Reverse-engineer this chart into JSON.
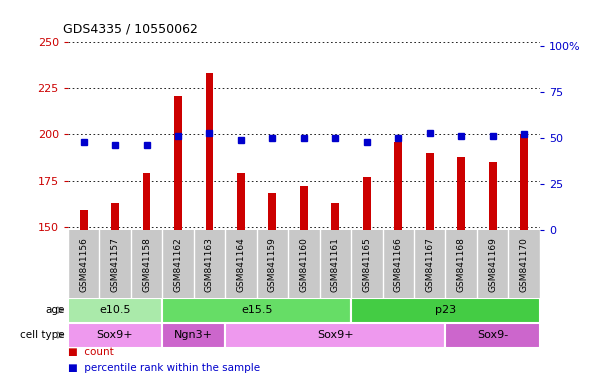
{
  "title": "GDS4335 / 10550062",
  "samples": [
    "GSM841156",
    "GSM841157",
    "GSM841158",
    "GSM841162",
    "GSM841163",
    "GSM841164",
    "GSM841159",
    "GSM841160",
    "GSM841161",
    "GSM841165",
    "GSM841166",
    "GSM841167",
    "GSM841168",
    "GSM841169",
    "GSM841170"
  ],
  "counts": [
    159,
    163,
    179,
    221,
    233,
    179,
    168,
    172,
    163,
    177,
    196,
    190,
    188,
    185,
    200
  ],
  "percentiles": [
    48,
    46,
    46,
    51,
    53,
    49,
    50,
    50,
    50,
    48,
    50,
    53,
    51,
    51,
    52
  ],
  "ylim_left": [
    148,
    252
  ],
  "ylim_right": [
    0,
    104
  ],
  "yticks_left": [
    150,
    175,
    200,
    225,
    250
  ],
  "yticks_right": [
    0,
    25,
    50,
    75,
    100
  ],
  "ytick_labels_right": [
    "0",
    "25",
    "50",
    "75",
    "100%"
  ],
  "bar_color": "#cc0000",
  "dot_color": "#0000cc",
  "grid_color": "#000000",
  "bg_color": "#ffffff",
  "tick_area_color": "#c8c8c8",
  "age_groups": [
    {
      "label": "e10.5",
      "start": 0,
      "end": 3,
      "color": "#aaeaaa"
    },
    {
      "label": "e15.5",
      "start": 3,
      "end": 9,
      "color": "#66dd66"
    },
    {
      "label": "p23",
      "start": 9,
      "end": 15,
      "color": "#44cc44"
    }
  ],
  "cell_type_groups": [
    {
      "label": "Sox9+",
      "start": 0,
      "end": 3,
      "color": "#ee99ee"
    },
    {
      "label": "Ngn3+",
      "start": 3,
      "end": 5,
      "color": "#cc66cc"
    },
    {
      "label": "Sox9+",
      "start": 5,
      "end": 12,
      "color": "#ee99ee"
    },
    {
      "label": "Sox9-",
      "start": 12,
      "end": 15,
      "color": "#cc66cc"
    }
  ],
  "legend_count_label": "count",
  "legend_pct_label": "percentile rank within the sample",
  "age_label": "age",
  "cell_type_label": "cell type"
}
